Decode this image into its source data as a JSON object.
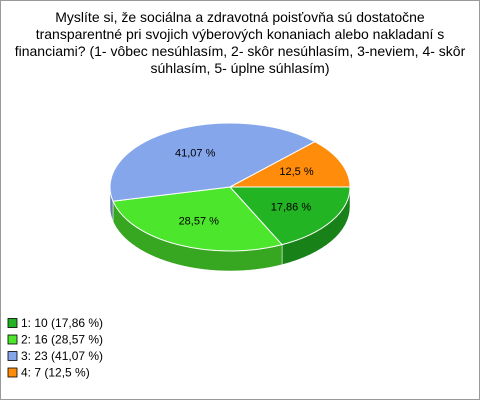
{
  "chart_data": {
    "type": "pie3d",
    "title": "Myslíte si, že sociálna a zdravotná poisťovňa sú dostatočne transparentné pri svojich výberových konaniach alebo nakladaní s financiami? (1- vôbec nesúhlasím, 2- skôr nesúhlasím, 3-neviem, 4- skôr súhlasím, 5- úplne súhlasím)",
    "categories": [
      "1: 10 (17,86 %)",
      "2: 16 (28,57 %)",
      "3: 23 (41,07 %)",
      "4: 7 (12,5 %)"
    ],
    "values": [
      17.86,
      28.57,
      41.07,
      12.5
    ],
    "value_labels": [
      "17,86 %",
      "28,57 %",
      "41,07 %",
      "12,5 %"
    ],
    "colors": [
      "#22b422",
      "#4ce62c",
      "#86a6ec",
      "#ff8c0a"
    ],
    "legend": "bottom-left"
  }
}
